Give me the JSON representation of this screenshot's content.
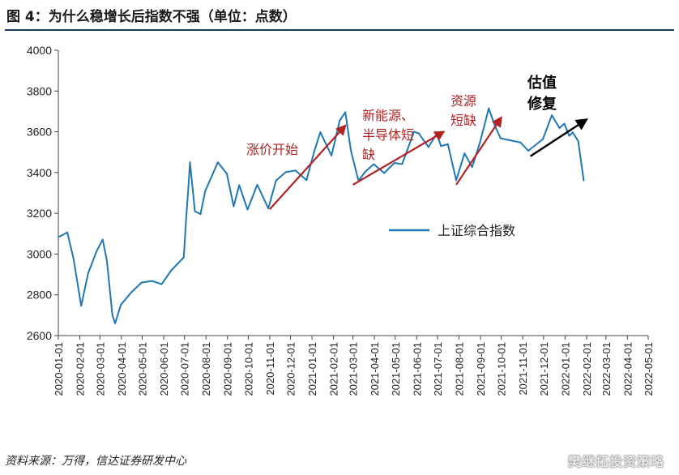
{
  "title": "图 4：为什么稳增长后指数不强（单位：点数）",
  "source": "资料来源：万得，信达证券研发中心",
  "watermark": "樊继拓投资策略",
  "chart_data": {
    "type": "line",
    "ylim": [
      2600,
      4000
    ],
    "yticks": [
      2600,
      2800,
      3000,
      3200,
      3400,
      3600,
      3800,
      4000
    ],
    "xticks": [
      "2020-01-01",
      "2020-02-01",
      "2020-03-01",
      "2020-04-01",
      "2020-05-01",
      "2020-06-01",
      "2020-07-01",
      "2020-08-01",
      "2020-09-01",
      "2020-10-01",
      "2020-11-01",
      "2020-12-01",
      "2021-01-01",
      "2021-02-01",
      "2021-03-01",
      "2021-04-01",
      "2021-05-01",
      "2021-06-01",
      "2021-07-01",
      "2021-08-01",
      "2021-09-01",
      "2021-10-01",
      "2021-11-01",
      "2021-12-01",
      "2022-01-01",
      "2022-02-01",
      "2022-03-01",
      "2022-04-01",
      "2022-05-01"
    ],
    "legend": "top-right",
    "series": [
      {
        "name": "上证综合指数",
        "color": "#1f77b4",
        "points": [
          [
            "2020-01-02",
            3085
          ],
          [
            "2020-01-14",
            3106
          ],
          [
            "2020-01-23",
            2976
          ],
          [
            "2020-02-03",
            2746
          ],
          [
            "2020-02-13",
            2906
          ],
          [
            "2020-02-25",
            3013
          ],
          [
            "2020-03-05",
            3071
          ],
          [
            "2020-03-11",
            2968
          ],
          [
            "2020-03-19",
            2702
          ],
          [
            "2020-03-23",
            2660
          ],
          [
            "2020-03-31",
            2750
          ],
          [
            "2020-04-15",
            2811
          ],
          [
            "2020-04-30",
            2860
          ],
          [
            "2020-05-15",
            2868
          ],
          [
            "2020-05-29",
            2852
          ],
          [
            "2020-06-12",
            2920
          ],
          [
            "2020-06-30",
            2984
          ],
          [
            "2020-07-03",
            3152
          ],
          [
            "2020-07-07",
            3345
          ],
          [
            "2020-07-09",
            3450
          ],
          [
            "2020-07-16",
            3210
          ],
          [
            "2020-07-24",
            3196
          ],
          [
            "2020-07-31",
            3310
          ],
          [
            "2020-08-18",
            3450
          ],
          [
            "2020-08-31",
            3395
          ],
          [
            "2020-09-10",
            3234
          ],
          [
            "2020-09-18",
            3338
          ],
          [
            "2020-09-30",
            3218
          ],
          [
            "2020-10-14",
            3340
          ],
          [
            "2020-10-30",
            3224
          ],
          [
            "2020-11-10",
            3360
          ],
          [
            "2020-11-24",
            3402
          ],
          [
            "2020-12-08",
            3410
          ],
          [
            "2020-12-24",
            3363
          ],
          [
            "2021-01-04",
            3502
          ],
          [
            "2021-01-13",
            3598
          ],
          [
            "2021-01-29",
            3483
          ],
          [
            "2021-02-10",
            3655
          ],
          [
            "2021-02-18",
            3696
          ],
          [
            "2021-02-26",
            3509
          ],
          [
            "2021-03-09",
            3360
          ],
          [
            "2021-03-19",
            3405
          ],
          [
            "2021-03-31",
            3441
          ],
          [
            "2021-04-15",
            3398
          ],
          [
            "2021-04-30",
            3447
          ],
          [
            "2021-05-11",
            3441
          ],
          [
            "2021-05-28",
            3600
          ],
          [
            "2021-06-04",
            3592
          ],
          [
            "2021-06-18",
            3525
          ],
          [
            "2021-06-30",
            3591
          ],
          [
            "2021-07-06",
            3530
          ],
          [
            "2021-07-16",
            3539
          ],
          [
            "2021-07-28",
            3362
          ],
          [
            "2021-08-09",
            3494
          ],
          [
            "2021-08-20",
            3427
          ],
          [
            "2021-08-31",
            3544
          ],
          [
            "2021-09-13",
            3715
          ],
          [
            "2021-09-22",
            3628
          ],
          [
            "2021-09-30",
            3568
          ],
          [
            "2021-10-14",
            3558
          ],
          [
            "2021-10-29",
            3547
          ],
          [
            "2021-11-09",
            3507
          ],
          [
            "2021-11-30",
            3564
          ],
          [
            "2021-12-13",
            3681
          ],
          [
            "2021-12-24",
            3618
          ],
          [
            "2021-12-31",
            3640
          ],
          [
            "2022-01-07",
            3580
          ],
          [
            "2022-01-12",
            3597
          ],
          [
            "2022-01-20",
            3555
          ],
          [
            "2022-01-28",
            3361
          ]
        ]
      }
    ],
    "annotations": [
      {
        "text": "涨价开始",
        "color": "#b22222",
        "arrow": {
          "from": [
            "2020-11-01",
            3220
          ],
          "to": [
            "2021-02-18",
            3630
          ]
        }
      },
      {
        "text": "新能源、半导体短缺",
        "lines": [
          "新能源、",
          "半导体短",
          "缺"
        ],
        "color": "#b22222",
        "arrow": {
          "from": [
            "2021-03-01",
            3340
          ],
          "to": [
            "2021-07-10",
            3600
          ]
        }
      },
      {
        "text": "资源短缺",
        "lines": [
          "资源",
          "短缺"
        ],
        "color": "#b22222",
        "arrow": {
          "from": [
            "2021-07-28",
            3340
          ],
          "to": [
            "2021-10-01",
            3670
          ]
        }
      },
      {
        "text": "估值修复",
        "lines": [
          "估值",
          "修复"
        ],
        "color": "#000000",
        "arrow": {
          "from": [
            "2021-11-12",
            3480
          ],
          "to": [
            "2022-02-01",
            3660
          ]
        }
      }
    ]
  }
}
